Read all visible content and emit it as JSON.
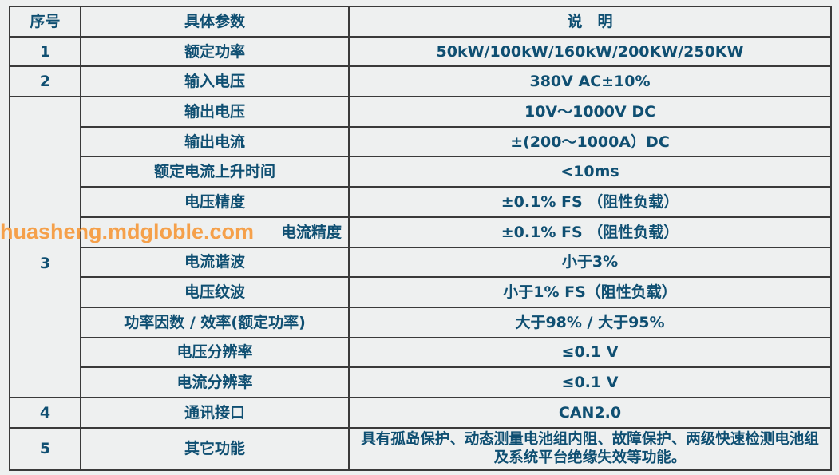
{
  "header": {
    "no": "序号",
    "param": "具体参数",
    "desc": "说　明"
  },
  "rows": [
    {
      "no": "1",
      "param": "额定功率",
      "desc": "50kW/100kW/160kW/200KW/250KW"
    },
    {
      "no": "2",
      "param": "输入电压",
      "desc": "380V AC±10%"
    },
    {
      "no": "3",
      "param": "输出电压",
      "desc": "10V～1000V DC"
    },
    {
      "param": "输出电流",
      "desc": "±(200～1000A）DC"
    },
    {
      "param": "额定电流上升时间",
      "desc": "<10ms"
    },
    {
      "param": "电压精度",
      "desc": "±0.1% FS （阻性负载）"
    },
    {
      "param": "电流精度",
      "desc": "±0.1% FS （阻性负载）"
    },
    {
      "param": "电流谐波",
      "desc": "小于3%"
    },
    {
      "param": "电压纹波",
      "desc": "小于1% FS（阻性负载）"
    },
    {
      "param": "功率因数 / 效率(额定功率)",
      "desc": "大于98% / 大于95%"
    },
    {
      "param": "电压分辨率",
      "desc": "≤0.1 V"
    },
    {
      "param": "电流分辨率",
      "desc": "≤0.1 V"
    },
    {
      "no": "4",
      "param": "通讯接口",
      "desc": "CAN2.0"
    },
    {
      "no": "5",
      "param": "其它功能",
      "desc": "具有孤岛保护、动态测量电池组内阻、故障保护、两级快速检测电池组及系统平台绝缘失效等功能。"
    }
  ],
  "watermark": "huasheng.mdgloble.com",
  "colors": {
    "text": "#0f4f72",
    "watermark": "#f5a04a",
    "background": "#eef0f0"
  }
}
